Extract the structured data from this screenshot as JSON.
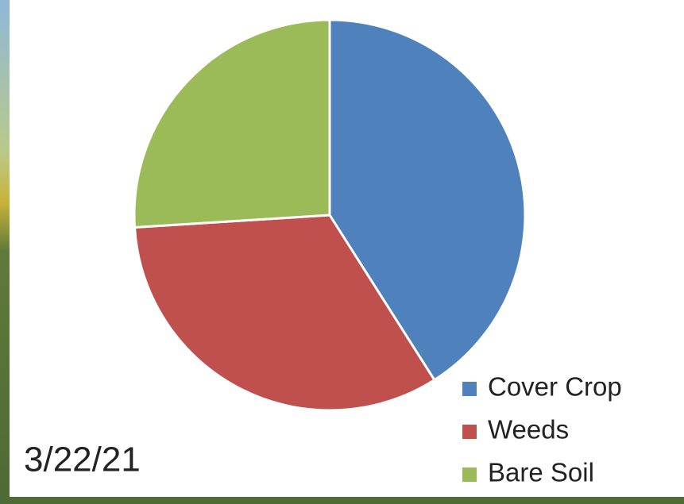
{
  "chart_data": {
    "type": "pie",
    "categories": [
      "Cover Crop",
      "Weeds",
      "Bare Soil"
    ],
    "values": [
      41,
      33,
      26
    ],
    "colors": [
      "#4f81bd",
      "#c0504d",
      "#9bbb59"
    ],
    "annotation": "3/22/21",
    "legend": "bottom-right"
  }
}
